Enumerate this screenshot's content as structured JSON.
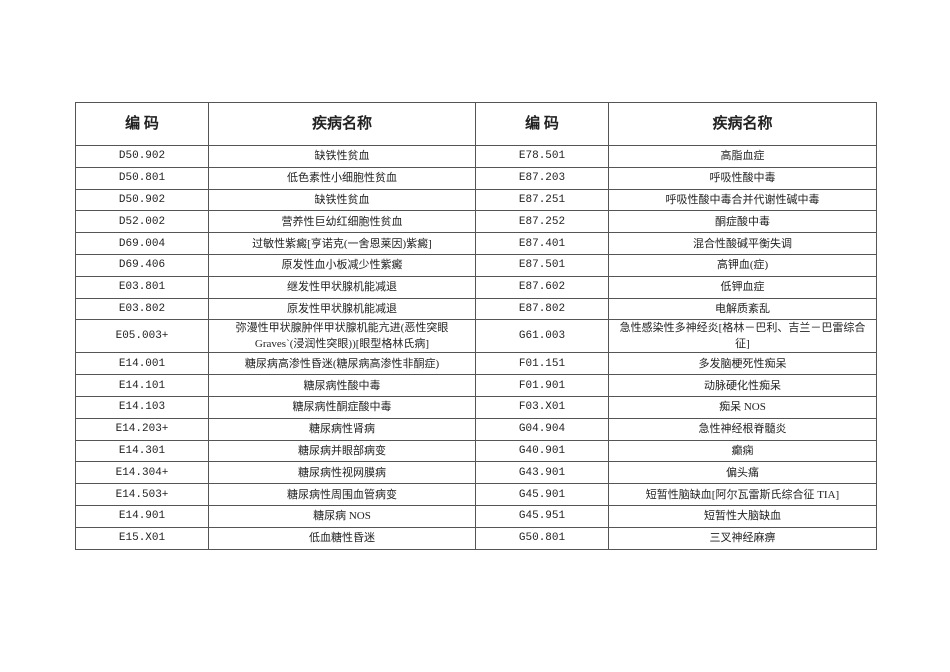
{
  "headers": [
    "编 码",
    "疾病名称",
    "编 码",
    "疾病名称"
  ],
  "rows": [
    {
      "code1": "D50.902",
      "name1": "缺铁性贫血",
      "code2": "E78.501",
      "name2": "高脂血症"
    },
    {
      "code1": "D50.801",
      "name1": "低色素性小细胞性贫血",
      "code2": "E87.203",
      "name2": "呼吸性酸中毒"
    },
    {
      "code1": "D50.902",
      "name1": "缺铁性贫血",
      "code2": "E87.251",
      "name2": "呼吸性酸中毒合并代谢性碱中毒"
    },
    {
      "code1": "D52.002",
      "name1": "营养性巨幼红细胞性贫血",
      "code2": "E87.252",
      "name2": "酮症酸中毒"
    },
    {
      "code1": "D69.004",
      "name1": "过敏性紫癜[亨诺克(一舍恩莱因)紫癜]",
      "code2": "E87.401",
      "name2": "混合性酸碱平衡失调"
    },
    {
      "code1": "D69.406",
      "name1": "原发性血小板减少性紫癜",
      "code2": "E87.501",
      "name2": "高钾血(症)"
    },
    {
      "code1": "E03.801",
      "name1": "继发性甲状腺机能减退",
      "code2": "E87.602",
      "name2": "低钾血症"
    },
    {
      "code1": "E03.802",
      "name1": "原发性甲状腺机能减退",
      "code2": "E87.802",
      "name2": "电解质紊乱"
    },
    {
      "code1": "E05.003+",
      "name1": "弥漫性甲状腺肿伴甲状腺机能亢进(恶性突眼Graves`(浸润性突眼))[眼型格林氏病]",
      "code2": "G61.003",
      "name2": "急性感染性多神经炎[格林－巴利、吉兰－巴雷综合征]"
    },
    {
      "code1": "E14.001",
      "name1": "糖尿病高渗性昏迷(糖尿病高渗性非酮症)",
      "code2": "F01.151",
      "name2": "多发脑梗死性痴呆"
    },
    {
      "code1": "E14.101",
      "name1": "糖尿病性酸中毒",
      "code2": "F01.901",
      "name2": "动脉硬化性痴呆"
    },
    {
      "code1": "E14.103",
      "name1": "糖尿病性酮症酸中毒",
      "code2": "F03.X01",
      "name2": "痴呆 NOS"
    },
    {
      "code1": "E14.203+",
      "name1": "糖尿病性肾病",
      "code2": "G04.904",
      "name2": "急性神经根脊髓炎"
    },
    {
      "code1": "E14.301",
      "name1": "糖尿病并眼部病变",
      "code2": "G40.901",
      "name2": "癫痫"
    },
    {
      "code1": "E14.304+",
      "name1": "糖尿病性视网膜病",
      "code2": "G43.901",
      "name2": "偏头痛"
    },
    {
      "code1": "E14.503+",
      "name1": "糖尿病性周围血管病变",
      "code2": "G45.901",
      "name2": "短暂性脑缺血[阿尔瓦雷斯氏综合征 TIA]"
    },
    {
      "code1": "E14.901",
      "name1": "糖尿病 NOS",
      "code2": "G45.951",
      "name2": "短暂性大脑缺血"
    },
    {
      "code1": "E15.X01",
      "name1": "低血糖性昏迷",
      "code2": "G50.801",
      "name2": "三叉神经麻痹"
    }
  ]
}
